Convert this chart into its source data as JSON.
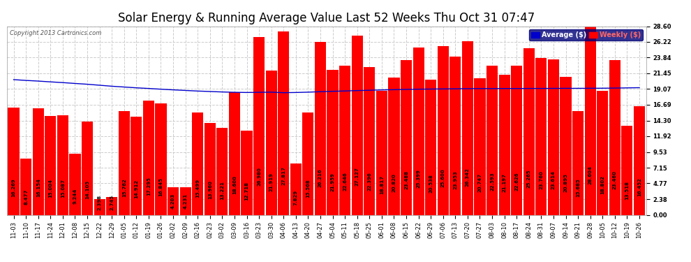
{
  "title": "Solar Energy & Running Average Value Last 52 Weeks Thu Oct 31 07:47",
  "copyright": "Copyright 2013 Cartronics.com",
  "categories": [
    "11-03",
    "11-10",
    "11-17",
    "11-24",
    "12-01",
    "12-08",
    "12-15",
    "12-22",
    "12-29",
    "01-05",
    "01-12",
    "01-19",
    "01-26",
    "02-02",
    "02-09",
    "02-16",
    "02-23",
    "03-02",
    "03-09",
    "03-16",
    "03-23",
    "03-30",
    "04-06",
    "04-13",
    "04-20",
    "04-27",
    "05-04",
    "05-11",
    "05-18",
    "05-25",
    "06-01",
    "06-08",
    "06-15",
    "06-22",
    "06-29",
    "07-06",
    "07-13",
    "07-20",
    "07-27",
    "08-03",
    "08-10",
    "08-17",
    "08-24",
    "08-31",
    "09-07",
    "09-14",
    "09-21",
    "09-28",
    "10-05",
    "10-12",
    "10-19",
    "10-26"
  ],
  "weekly_values": [
    16.269,
    8.477,
    16.154,
    15.004,
    15.087,
    9.244,
    14.105,
    2.398,
    2.745,
    15.762,
    14.912,
    17.295,
    16.845,
    4.203,
    4.231,
    15.499,
    13.96,
    13.221,
    18.6,
    12.718,
    26.98,
    21.919,
    27.817,
    7.829,
    15.568,
    26.216,
    21.959,
    22.646,
    27.127,
    22.396,
    18.817,
    20.82,
    23.488,
    25.399,
    20.538,
    25.6,
    23.953,
    26.342,
    20.747,
    22.593,
    21.197,
    22.626,
    25.265,
    23.76,
    23.614,
    20.895,
    15.685,
    28.604,
    18.802,
    23.46,
    13.518,
    16.452
  ],
  "average_values": [
    20.5,
    20.38,
    20.28,
    20.16,
    20.05,
    19.92,
    19.8,
    19.65,
    19.5,
    19.38,
    19.26,
    19.16,
    19.05,
    18.95,
    18.86,
    18.77,
    18.7,
    18.63,
    18.58,
    18.55,
    18.58,
    18.6,
    18.52,
    18.55,
    18.6,
    18.67,
    18.73,
    18.78,
    18.84,
    18.89,
    18.94,
    18.98,
    19.02,
    19.05,
    19.07,
    19.09,
    19.11,
    19.13,
    19.14,
    19.14,
    19.15,
    19.15,
    19.16,
    19.16,
    19.17,
    19.18,
    19.18,
    19.19,
    19.2,
    19.22,
    19.25,
    19.28
  ],
  "bar_color": "#ff0000",
  "line_color": "#0000cc",
  "background_color": "#ffffff",
  "grid_color": "#cccccc",
  "yticks": [
    0.0,
    2.38,
    4.77,
    7.15,
    9.53,
    11.92,
    14.3,
    16.69,
    19.07,
    21.45,
    23.84,
    26.22,
    28.6
  ],
  "ylim": [
    0.0,
    28.6
  ],
  "legend_avg_color": "#0000cc",
  "legend_weekly_color": "#ff0000",
  "title_fontsize": 12,
  "tick_fontsize": 6.0,
  "label_fontsize": 5.0
}
